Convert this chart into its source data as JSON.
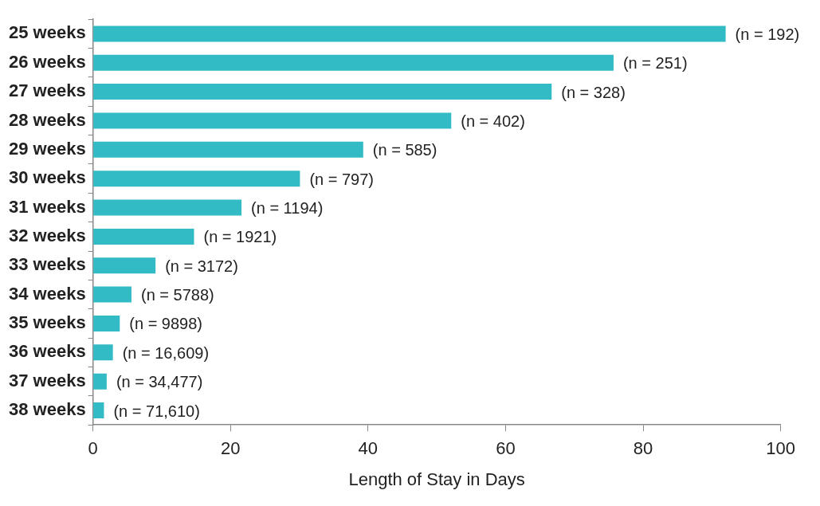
{
  "chart_data": {
    "type": "bar",
    "orientation": "horizontal",
    "xlabel": "Length of Stay in Days",
    "categories": [
      "25 weeks",
      "26 weeks",
      "27 weeks",
      "28 weeks",
      "29 weeks",
      "30 weeks",
      "31 weeks",
      "32 weeks",
      "33 weeks",
      "34 weeks",
      "35 weeks",
      "36 weeks",
      "37 weeks",
      "38 weeks"
    ],
    "values": [
      92,
      75.7,
      66.7,
      52.1,
      39.3,
      30.1,
      21.6,
      14.7,
      9.1,
      5.6,
      3.9,
      2.9,
      2.0,
      1.6
    ],
    "annotations": [
      {
        "text": "(n = 192)",
        "x": 92,
        "y": "25 weeks"
      },
      {
        "text": "(n = 251)",
        "x": 75.7,
        "y": "26 weeks"
      },
      {
        "text": "(n = 328)",
        "x": 66.7,
        "y": "27 weeks"
      },
      {
        "text": "(n = 402)",
        "x": 52.1,
        "y": "28 weeks"
      },
      {
        "text": "(n = 585)",
        "x": 39.3,
        "y": "29 weeks"
      },
      {
        "text": "(n = 797)",
        "x": 30.1,
        "y": "30 weeks"
      },
      {
        "text": "(n = 1194)",
        "x": 21.6,
        "y": "31 weeks"
      },
      {
        "text": "(n = 1921)",
        "x": 14.7,
        "y": "32 weeks"
      },
      {
        "text": "(n = 3172)",
        "x": 9.1,
        "y": "33 weeks"
      },
      {
        "text": "(n = 5788)",
        "x": 5.6,
        "y": "34 weeks"
      },
      {
        "text": "(n = 9898)",
        "x": 3.9,
        "y": "35 weeks"
      },
      {
        "text": "(n = 16,609)",
        "x": 2.9,
        "y": "36 weeks"
      },
      {
        "text": "(n = 34,477)",
        "x": 2.0,
        "y": "37 weeks"
      },
      {
        "text": "(n = 71,610)",
        "x": 1.6,
        "y": "38 weeks"
      }
    ],
    "color": "#33bbc5",
    "xlim": [
      0,
      100
    ],
    "xticks": [
      0,
      20,
      40,
      60,
      80,
      100
    ],
    "grid": false,
    "legend": false
  }
}
